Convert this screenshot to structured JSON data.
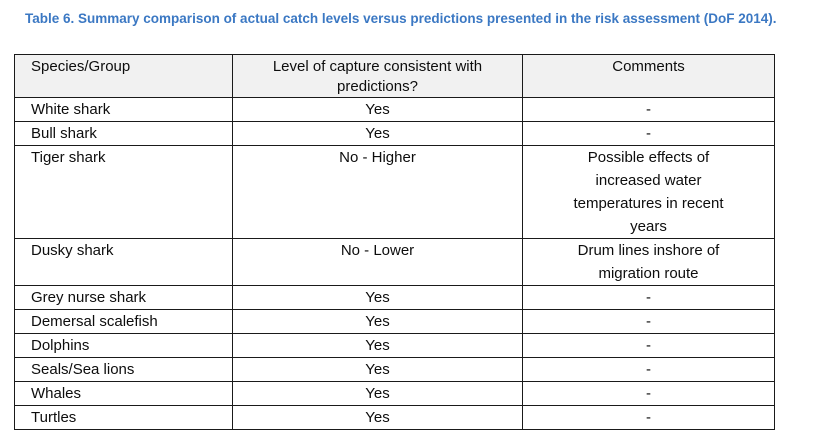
{
  "caption": {
    "text": "Table 6. Summary comparison of actual catch levels versus predictions presented in the risk assessment (DoF 2014)."
  },
  "table": {
    "columns": [
      "Species/Group",
      "Level of capture consistent with predictions?",
      "Comments"
    ],
    "rows": [
      {
        "species": "White shark",
        "consistent": "Yes",
        "comments": "-"
      },
      {
        "species": "Bull shark",
        "consistent": "Yes",
        "comments": "-"
      },
      {
        "species": "Tiger shark",
        "consistent": "No - Higher",
        "comments": "Possible effects of increased water temperatures in recent years"
      },
      {
        "species": "Dusky shark",
        "consistent": "No - Lower",
        "comments": "Drum lines inshore of migration route"
      },
      {
        "species": "Grey nurse shark",
        "consistent": "Yes",
        "comments": "-"
      },
      {
        "species": "Demersal scalefish",
        "consistent": "Yes",
        "comments": "-"
      },
      {
        "species": "Dolphins",
        "consistent": "Yes",
        "comments": "-"
      },
      {
        "species": "Seals/Sea lions",
        "consistent": "Yes",
        "comments": "-"
      },
      {
        "species": "Whales",
        "consistent": "Yes",
        "comments": "-"
      },
      {
        "species": "Turtles",
        "consistent": "Yes",
        "comments": "-"
      }
    ]
  },
  "colors": {
    "caption_blue": "#3b78c3",
    "header_background": "#f1f1f1",
    "border": "#1a1a1a"
  }
}
